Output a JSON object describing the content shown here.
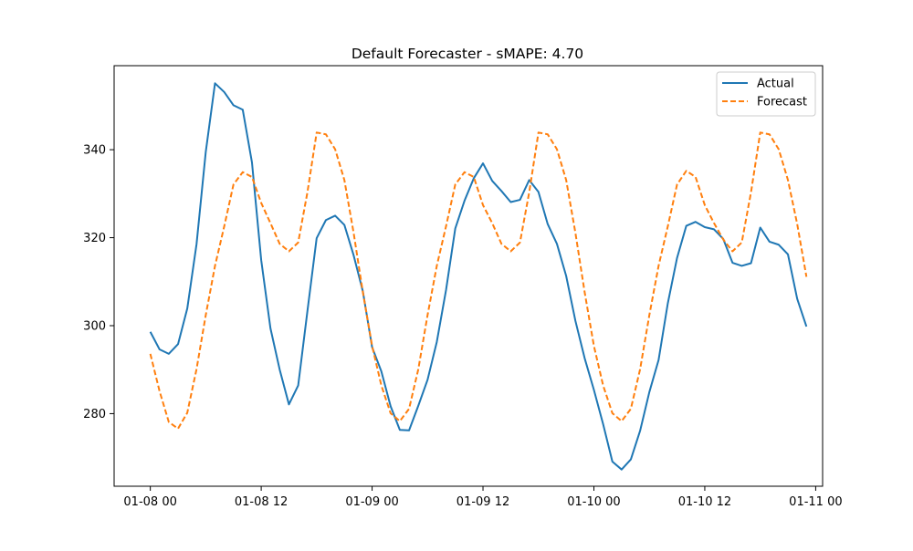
{
  "chart_data": {
    "type": "line",
    "title": "Default Forecaster - sMAPE: 4.70",
    "xlabel": "",
    "ylabel": "",
    "x_tick_labels": [
      "01-08 00",
      "01-08 12",
      "01-09 00",
      "01-09 12",
      "01-10 00",
      "01-10 12",
      "01-11 00"
    ],
    "y_ticks": [
      280,
      300,
      320,
      340
    ],
    "xlim": [
      "2025-01-07 20:05",
      "2025-01-11 00:45"
    ],
    "ylim": [
      263.5,
      359.1
    ],
    "grid": false,
    "legend": {
      "position": "top-right"
    },
    "x": [
      "2025-01-08 00:00",
      "2025-01-08 01:00",
      "2025-01-08 02:00",
      "2025-01-08 03:00",
      "2025-01-08 04:00",
      "2025-01-08 05:00",
      "2025-01-08 06:00",
      "2025-01-08 07:00",
      "2025-01-08 08:00",
      "2025-01-08 09:00",
      "2025-01-08 10:00",
      "2025-01-08 11:00",
      "2025-01-08 12:00",
      "2025-01-08 13:00",
      "2025-01-08 14:00",
      "2025-01-08 15:00",
      "2025-01-08 16:00",
      "2025-01-08 17:00",
      "2025-01-08 18:00",
      "2025-01-08 19:00",
      "2025-01-08 20:00",
      "2025-01-08 21:00",
      "2025-01-08 22:00",
      "2025-01-08 23:00",
      "2025-01-09 00:00",
      "2025-01-09 01:00",
      "2025-01-09 02:00",
      "2025-01-09 03:00",
      "2025-01-09 04:00",
      "2025-01-09 05:00",
      "2025-01-09 06:00",
      "2025-01-09 07:00",
      "2025-01-09 08:00",
      "2025-01-09 09:00",
      "2025-01-09 10:00",
      "2025-01-09 11:00",
      "2025-01-09 12:00",
      "2025-01-09 13:00",
      "2025-01-09 14:00",
      "2025-01-09 15:00",
      "2025-01-09 16:00",
      "2025-01-09 17:00",
      "2025-01-09 18:00",
      "2025-01-09 19:00",
      "2025-01-09 20:00",
      "2025-01-09 21:00",
      "2025-01-09 22:00",
      "2025-01-09 23:00",
      "2025-01-10 00:00",
      "2025-01-10 01:00",
      "2025-01-10 02:00",
      "2025-01-10 03:00",
      "2025-01-10 04:00",
      "2025-01-10 05:00",
      "2025-01-10 06:00",
      "2025-01-10 07:00",
      "2025-01-10 08:00",
      "2025-01-10 09:00",
      "2025-01-10 10:00",
      "2025-01-10 11:00",
      "2025-01-10 12:00",
      "2025-01-10 13:00",
      "2025-01-10 14:00",
      "2025-01-10 15:00",
      "2025-01-10 16:00",
      "2025-01-10 17:00",
      "2025-01-10 18:00",
      "2025-01-10 19:00",
      "2025-01-10 20:00",
      "2025-01-10 21:00",
      "2025-01-10 22:00",
      "2025-01-10 23:00"
    ],
    "series": [
      {
        "name": "Actual",
        "color": "#1f77b4",
        "style": "solid",
        "values": [
          298.6,
          294.6,
          293.6,
          295.8,
          303.9,
          318.5,
          339.5,
          355.1,
          353.1,
          350.1,
          349.1,
          337.1,
          314.9,
          299.4,
          290.0,
          282.1,
          286.4,
          303.3,
          319.9,
          324.0,
          325.0,
          322.9,
          316.0,
          307.8,
          295.1,
          289.6,
          281.7,
          276.3,
          276.2,
          281.8,
          287.7,
          296.3,
          308.1,
          322.1,
          328.4,
          333.5,
          336.9,
          332.9,
          330.6,
          328.1,
          328.6,
          333.1,
          330.4,
          323.1,
          318.6,
          311.3,
          301.1,
          292.6,
          285.4,
          277.6,
          269.1,
          267.3,
          269.6,
          276.1,
          284.9,
          292.2,
          305.1,
          315.4,
          322.7,
          323.6,
          322.4,
          321.9,
          319.7,
          314.3,
          313.6,
          314.2,
          322.3,
          319.1,
          318.4,
          316.2,
          306.1,
          299.8
        ]
      },
      {
        "name": "Forecast",
        "color": "#ff7f0e",
        "style": "dashed",
        "values": [
          293.6,
          285.1,
          278.1,
          276.6,
          280.2,
          290.1,
          302.4,
          313.6,
          322.6,
          332.1,
          334.9,
          333.8,
          327.9,
          323.3,
          318.6,
          316.9,
          318.9,
          330.3,
          343.9,
          343.5,
          340.1,
          333.1,
          321.1,
          307.6,
          295.4,
          286.4,
          280.1,
          278.3,
          281.1,
          290.1,
          302.4,
          313.6,
          322.6,
          332.1,
          334.9,
          333.8,
          327.4,
          323.3,
          318.6,
          316.9,
          318.9,
          330.3,
          343.9,
          343.5,
          340.1,
          333.1,
          321.1,
          307.6,
          295.4,
          286.4,
          280.1,
          278.3,
          281.1,
          290.1,
          302.4,
          313.6,
          322.6,
          332.1,
          335.2,
          333.8,
          327.4,
          323.3,
          319.6,
          316.9,
          318.9,
          330.3,
          343.9,
          343.5,
          340.1,
          333.1,
          323.1,
          311.1
        ]
      }
    ]
  }
}
